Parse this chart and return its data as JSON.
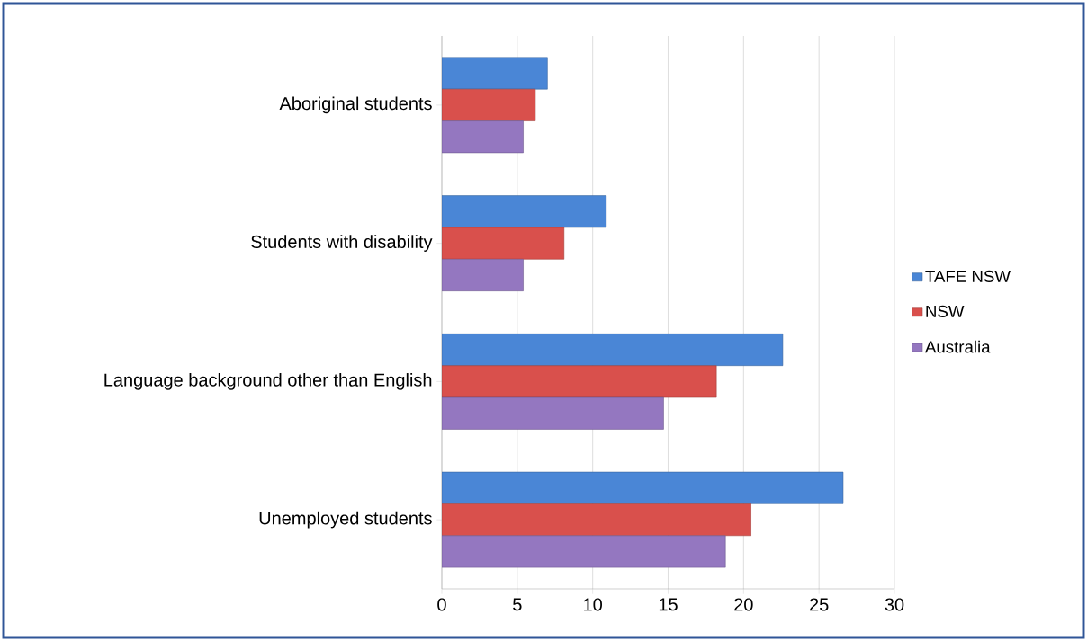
{
  "chart_data": {
    "type": "bar",
    "orientation": "horizontal",
    "categories": [
      "Aboriginal students",
      "Students with disability",
      "Language background other than English",
      "Unemployed students"
    ],
    "series": [
      {
        "name": "TAFE NSW",
        "color": "#4a86d6",
        "values": [
          7.0,
          10.9,
          22.6,
          26.6
        ]
      },
      {
        "name": "NSW",
        "color": "#d9504c",
        "values": [
          6.2,
          8.1,
          18.2,
          20.5
        ]
      },
      {
        "name": "Australia",
        "color": "#9477c0",
        "values": [
          5.4,
          5.4,
          14.7,
          18.8
        ]
      }
    ],
    "xlim": [
      0,
      30
    ],
    "xticks": [
      0,
      5,
      10,
      15,
      20,
      25,
      30
    ],
    "grid": "x",
    "legend": "right"
  }
}
